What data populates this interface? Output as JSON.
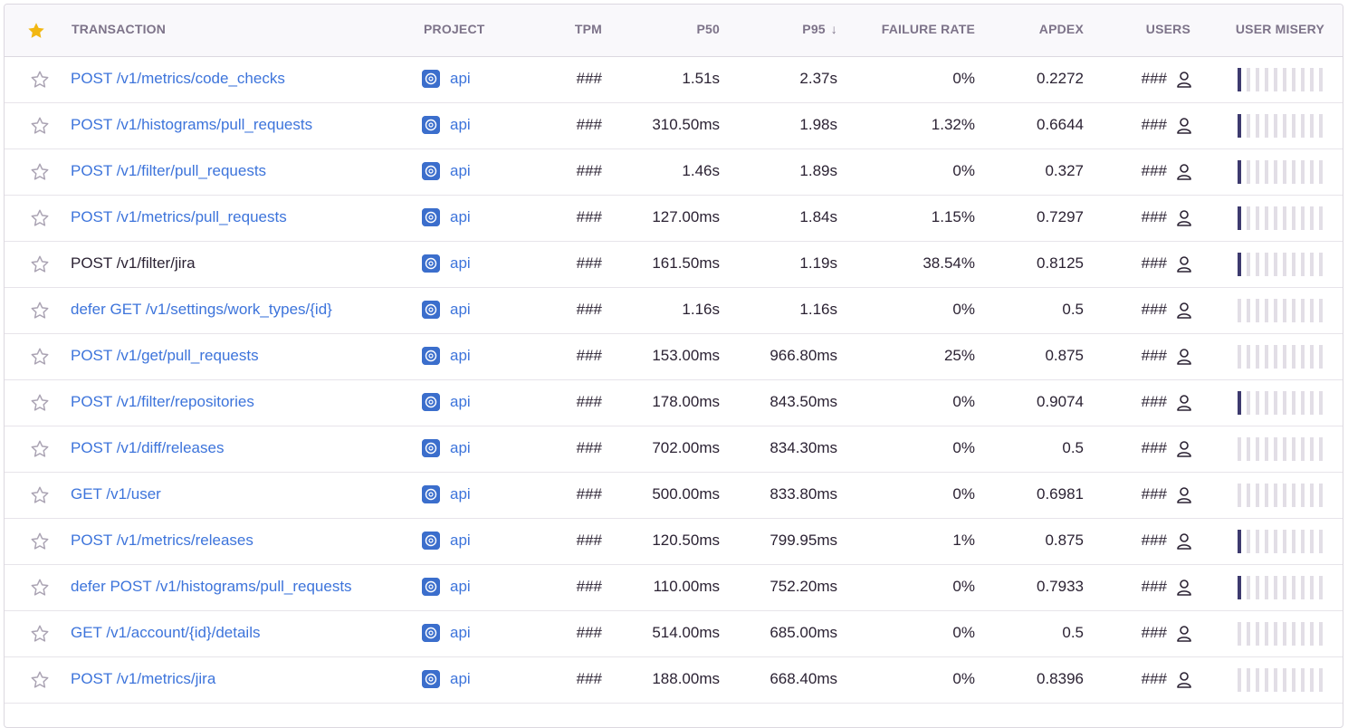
{
  "header": {
    "transaction": "TRANSACTION",
    "project": "PROJECT",
    "tpm": "TPM",
    "p50": "P50",
    "p95": "P95",
    "p95_sort": "↓",
    "failure_rate": "FAILURE RATE",
    "apdex": "APDEX",
    "users": "USERS",
    "user_misery": "USER MISERY"
  },
  "colors": {
    "link": "#3d74db",
    "star_active": "#f2b712",
    "misery_on": "#3d3a6e",
    "misery_off": "#e2dee6",
    "project_icon": "#3b6ecc"
  },
  "icons": {
    "header_star": "star-filled-icon",
    "row_star": "star-outline-icon",
    "project": "project-platform-icon",
    "user": "user-icon"
  },
  "rows": [
    {
      "transaction": "POST /v1/metrics/code_checks",
      "project": "api",
      "tpm": "###",
      "p50": "1.51s",
      "p95": "2.37s",
      "failure_rate": "0%",
      "apdex": "0.2272",
      "users": "###",
      "misery": 1,
      "visited": false
    },
    {
      "transaction": "POST /v1/histograms/pull_requests",
      "project": "api",
      "tpm": "###",
      "p50": "310.50ms",
      "p95": "1.98s",
      "failure_rate": "1.32%",
      "apdex": "0.6644",
      "users": "###",
      "misery": 1,
      "visited": false
    },
    {
      "transaction": "POST /v1/filter/pull_requests",
      "project": "api",
      "tpm": "###",
      "p50": "1.46s",
      "p95": "1.89s",
      "failure_rate": "0%",
      "apdex": "0.327",
      "users": "###",
      "misery": 1,
      "visited": false
    },
    {
      "transaction": "POST /v1/metrics/pull_requests",
      "project": "api",
      "tpm": "###",
      "p50": "127.00ms",
      "p95": "1.84s",
      "failure_rate": "1.15%",
      "apdex": "0.7297",
      "users": "###",
      "misery": 1,
      "visited": false
    },
    {
      "transaction": "POST /v1/filter/jira",
      "project": "api",
      "tpm": "###",
      "p50": "161.50ms",
      "p95": "1.19s",
      "failure_rate": "38.54%",
      "apdex": "0.8125",
      "users": "###",
      "misery": 1,
      "visited": true
    },
    {
      "transaction": "defer GET /v1/settings/work_types/{id}",
      "project": "api",
      "tpm": "###",
      "p50": "1.16s",
      "p95": "1.16s",
      "failure_rate": "0%",
      "apdex": "0.5",
      "users": "###",
      "misery": 0,
      "visited": false
    },
    {
      "transaction": "POST /v1/get/pull_requests",
      "project": "api",
      "tpm": "###",
      "p50": "153.00ms",
      "p95": "966.80ms",
      "failure_rate": "25%",
      "apdex": "0.875",
      "users": "###",
      "misery": 0,
      "visited": false
    },
    {
      "transaction": "POST /v1/filter/repositories",
      "project": "api",
      "tpm": "###",
      "p50": "178.00ms",
      "p95": "843.50ms",
      "failure_rate": "0%",
      "apdex": "0.9074",
      "users": "###",
      "misery": 1,
      "visited": false
    },
    {
      "transaction": "POST /v1/diff/releases",
      "project": "api",
      "tpm": "###",
      "p50": "702.00ms",
      "p95": "834.30ms",
      "failure_rate": "0%",
      "apdex": "0.5",
      "users": "###",
      "misery": 0,
      "visited": false
    },
    {
      "transaction": "GET /v1/user",
      "project": "api",
      "tpm": "###",
      "p50": "500.00ms",
      "p95": "833.80ms",
      "failure_rate": "0%",
      "apdex": "0.6981",
      "users": "###",
      "misery": 0,
      "visited": false
    },
    {
      "transaction": "POST /v1/metrics/releases",
      "project": "api",
      "tpm": "###",
      "p50": "120.50ms",
      "p95": "799.95ms",
      "failure_rate": "1%",
      "apdex": "0.875",
      "users": "###",
      "misery": 1,
      "visited": false
    },
    {
      "transaction": "defer POST /v1/histograms/pull_requests",
      "project": "api",
      "tpm": "###",
      "p50": "110.00ms",
      "p95": "752.20ms",
      "failure_rate": "0%",
      "apdex": "0.7933",
      "users": "###",
      "misery": 1,
      "visited": false
    },
    {
      "transaction": "GET /v1/account/{id}/details",
      "project": "api",
      "tpm": "###",
      "p50": "514.00ms",
      "p95": "685.00ms",
      "failure_rate": "0%",
      "apdex": "0.5",
      "users": "###",
      "misery": 0,
      "visited": false
    },
    {
      "transaction": "POST /v1/metrics/jira",
      "project": "api",
      "tpm": "###",
      "p50": "188.00ms",
      "p95": "668.40ms",
      "failure_rate": "0%",
      "apdex": "0.8396",
      "users": "###",
      "misery": 0,
      "visited": false
    }
  ]
}
